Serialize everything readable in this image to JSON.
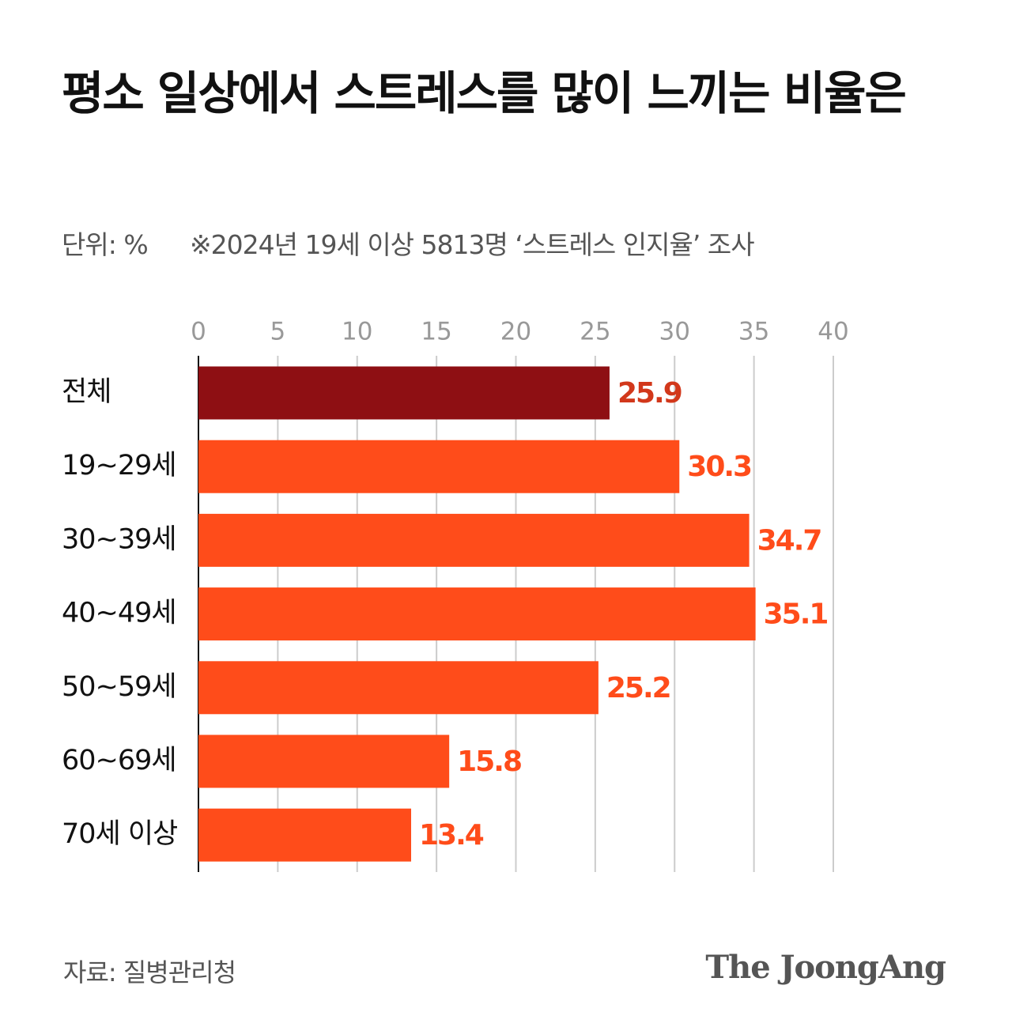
{
  "chart_data": {
    "type": "hbar",
    "title": "평소 일상에서 스트레스를 많이 느끼는 비율은",
    "unit": "단위: %",
    "note": "※2024년 19세 이상 5813명 ‘스트레스 인지율’ 조사",
    "source": "자료: 질병관리청",
    "brand": "The JoongAng",
    "categories": [
      "전체",
      "19~29세",
      "30~39세",
      "40~49세",
      "50~59세",
      "60~69세",
      "70세 이상"
    ],
    "values": [
      25.9,
      30.3,
      34.7,
      35.1,
      25.2,
      15.8,
      13.4
    ],
    "colors": [
      "#8e0f13",
      "#ff4c1a",
      "#ff4c1a",
      "#ff4c1a",
      "#ff4c1a",
      "#ff4c1a",
      "#ff4c1a"
    ],
    "label_colors": [
      "#d2381b",
      "#ff4c1a",
      "#ff4c1a",
      "#ff4c1a",
      "#ff4c1a",
      "#ff4c1a",
      "#ff4c1a"
    ],
    "xlim": [
      0,
      40
    ],
    "xticks": [
      0,
      5,
      10,
      15,
      20,
      25,
      30,
      35,
      40
    ],
    "grid": true
  }
}
